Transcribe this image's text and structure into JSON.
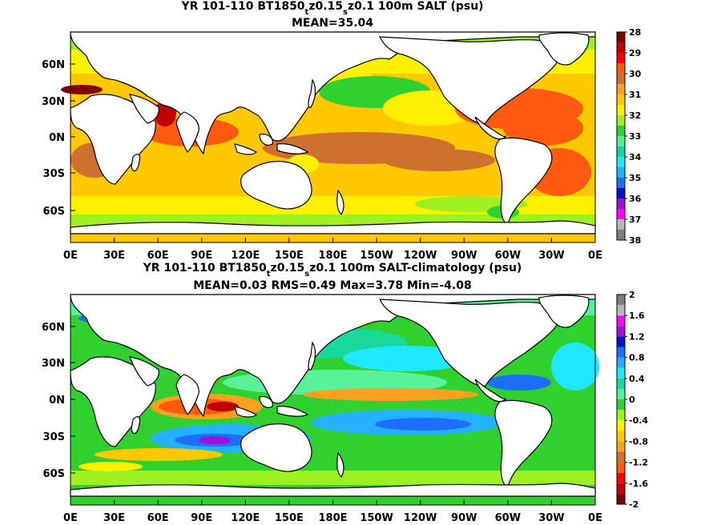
{
  "chart_data": [
    {
      "type": "heatmap",
      "title": "YR 101-110 BT1850",
      "title_sub": "t",
      "title_mid": "z0.15",
      "title_sub2": "s",
      "title_end": "z0.1 100m SALT (psu)",
      "subtitle": "MEAN=35.04",
      "x_ticks": [
        "0E",
        "30E",
        "60E",
        "90E",
        "120E",
        "150E",
        "180E",
        "150W",
        "120W",
        "90W",
        "60W",
        "30W",
        "0E"
      ],
      "y_ticks": [
        "60N",
        "30N",
        "0N",
        "30S",
        "60S"
      ],
      "y_tick_values": [
        60,
        30,
        0,
        -30,
        -60
      ],
      "ylim": [
        -80,
        85
      ],
      "colorbar": {
        "labels": [
          "28",
          "29",
          "30",
          "31",
          "32",
          "33",
          "34",
          "35",
          "36",
          "37",
          "38"
        ],
        "colors": [
          "#7f7f7f",
          "#b9b9b9",
          "#ff00ff",
          "#a010d8",
          "#0a10d0",
          "#1f6fff",
          "#23b0ff",
          "#20e8ff",
          "#18d8a0",
          "#58f098",
          "#2fd02f",
          "#9ef020",
          "#fff000",
          "#ffc800",
          "#ffa020",
          "#cd7030",
          "#ff5a10",
          "#ff0000",
          "#c00000",
          "#800000"
        ]
      }
    },
    {
      "type": "heatmap",
      "title": "YR 101-110 BT1850",
      "title_sub": "t",
      "title_mid": "z0.15",
      "title_sub2": "s",
      "title_end": "z0.1 100m SALT-climatology (psu)",
      "subtitle": "MEAN=0.03   RMS=0.49   Max=3.78   Min=-4.08",
      "x_ticks": [
        "0E",
        "30E",
        "60E",
        "90E",
        "120E",
        "150E",
        "180E",
        "150W",
        "120W",
        "90W",
        "60W",
        "30W",
        "0E"
      ],
      "y_ticks": [
        "60N",
        "30N",
        "0N",
        "30S",
        "60S"
      ],
      "y_tick_values": [
        60,
        30,
        0,
        -30,
        -60
      ],
      "ylim": [
        -80,
        85
      ],
      "colorbar": {
        "labels": [
          "2",
          "1.6",
          "1.2",
          "0.8",
          "0.4",
          "0",
          "-0.4",
          "-0.8",
          "-1.2",
          "-1.6",
          "-2"
        ],
        "colors": [
          "#800000",
          "#c00000",
          "#ff0000",
          "#ff5a10",
          "#cd7030",
          "#ffa020",
          "#ffc800",
          "#fff000",
          "#9ef020",
          "#2fd02f",
          "#58f098",
          "#18d8a0",
          "#20e8ff",
          "#23b0ff",
          "#1f6fff",
          "#0a10d0",
          "#a010d8",
          "#ff00ff",
          "#b9b9b9",
          "#7f7f7f"
        ]
      }
    }
  ]
}
